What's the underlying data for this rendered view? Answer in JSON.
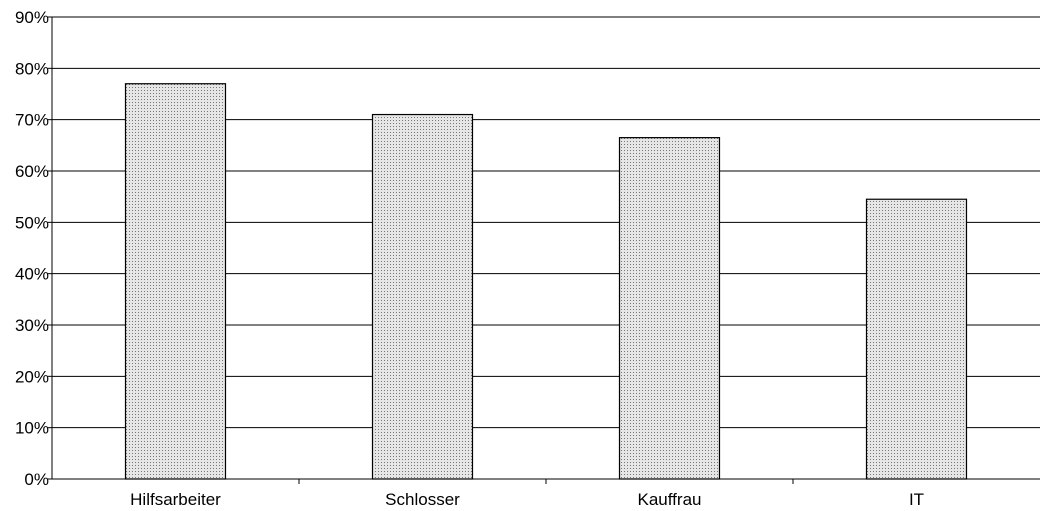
{
  "chart_data": {
    "type": "bar",
    "categories": [
      "Hilfsarbeiter",
      "Schlosser",
      "Kauffrau",
      "IT"
    ],
    "values": [
      77,
      71,
      66.5,
      54.5
    ],
    "ylim": [
      0,
      90
    ],
    "y_ticks": [
      "0%",
      "10%",
      "20%",
      "30%",
      "40%",
      "50%",
      "60%",
      "70%",
      "80%",
      "90%"
    ],
    "y_tick_values": [
      0,
      10,
      20,
      30,
      40,
      50,
      60,
      70,
      80,
      90
    ],
    "grid": true,
    "legend": "none",
    "title": "",
    "xlabel": "",
    "ylabel": "",
    "colors": {
      "bar_fill": "#e6e6e6",
      "bar_dots": "#777777",
      "grid": "#000000",
      "axis": "#000000"
    }
  }
}
